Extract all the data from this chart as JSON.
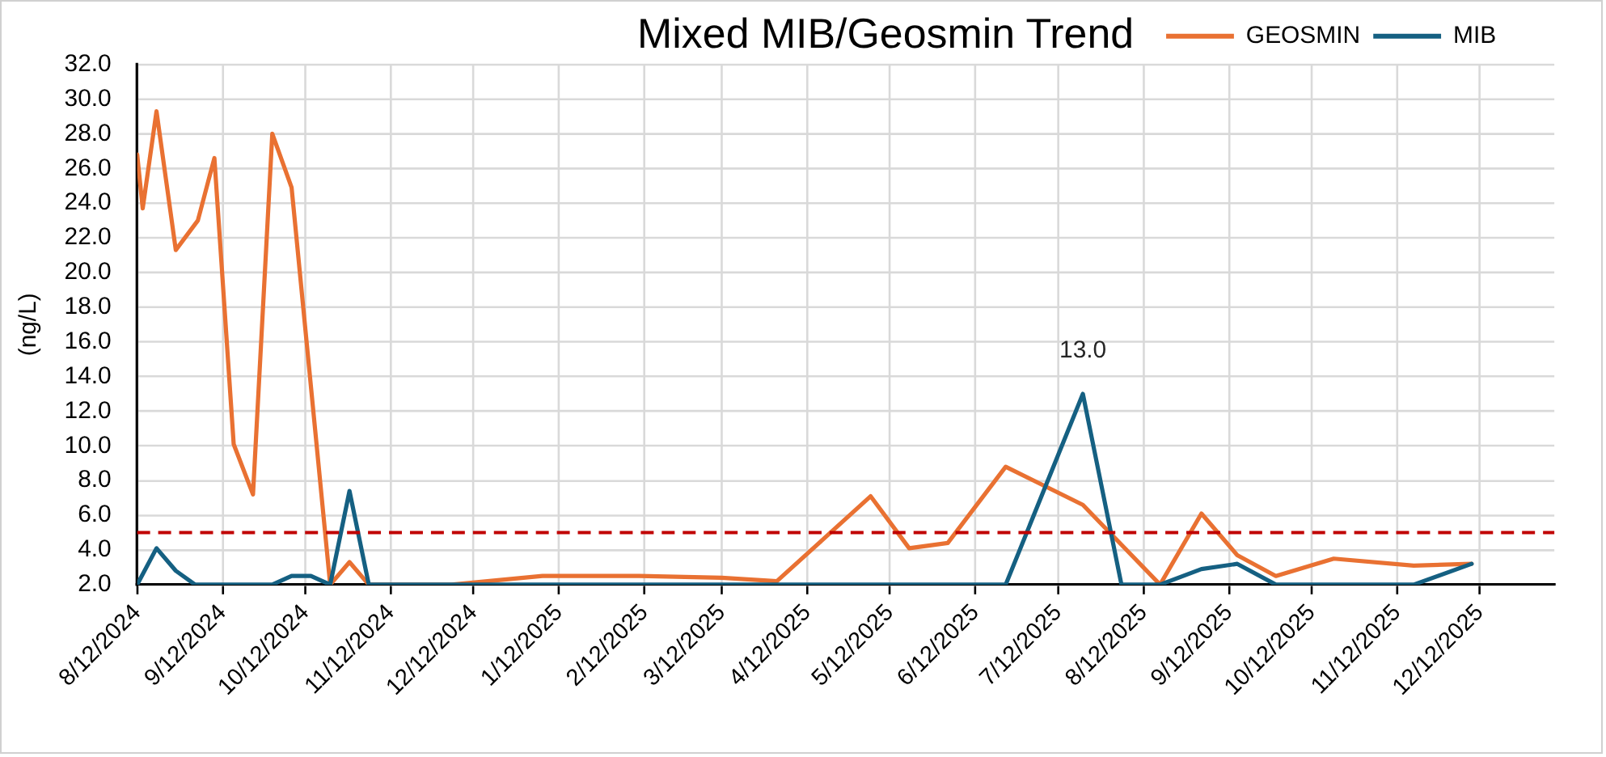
{
  "chart_data": {
    "type": "line",
    "title": "Mixed MIB/Geosmin Trend",
    "ylabel": "(ng/L)",
    "xlim": [
      "2024-08-12",
      "2026-01-08"
    ],
    "xticks": [
      {
        "value": "2024-08-12",
        "label": "8/12/2024"
      },
      {
        "value": "2024-09-12",
        "label": "9/12/2024"
      },
      {
        "value": "2024-10-12",
        "label": "10/12/2024"
      },
      {
        "value": "2024-11-12",
        "label": "11/12/2024"
      },
      {
        "value": "2024-12-12",
        "label": "12/12/2024"
      },
      {
        "value": "2025-01-12",
        "label": "1/12/2025"
      },
      {
        "value": "2025-02-12",
        "label": "2/12/2025"
      },
      {
        "value": "2025-03-12",
        "label": "3/12/2025"
      },
      {
        "value": "2025-04-12",
        "label": "4/12/2025"
      },
      {
        "value": "2025-05-12",
        "label": "5/12/2025"
      },
      {
        "value": "2025-06-12",
        "label": "6/12/2025"
      },
      {
        "value": "2025-07-12",
        "label": "7/12/2025"
      },
      {
        "value": "2025-08-12",
        "label": "8/12/2025"
      },
      {
        "value": "2025-09-12",
        "label": "9/12/2025"
      },
      {
        "value": "2025-10-12",
        "label": "10/12/2025"
      },
      {
        "value": "2025-11-12",
        "label": "11/12/2025"
      },
      {
        "value": "2025-12-12",
        "label": "12/12/2025"
      }
    ],
    "ylim": [
      2,
      32
    ],
    "yticks": [
      {
        "value": 2,
        "label": "2.0"
      },
      {
        "value": 4,
        "label": "4.0"
      },
      {
        "value": 6,
        "label": "6.0"
      },
      {
        "value": 8,
        "label": "8.0"
      },
      {
        "value": 10,
        "label": "10.0"
      },
      {
        "value": 12,
        "label": "12.0"
      },
      {
        "value": 14,
        "label": "14.0"
      },
      {
        "value": 16,
        "label": "16.0"
      },
      {
        "value": 18,
        "label": "18.0"
      },
      {
        "value": 20,
        "label": "20.0"
      },
      {
        "value": 22,
        "label": "22.0"
      },
      {
        "value": 24,
        "label": "24.0"
      },
      {
        "value": 26,
        "label": "26.0"
      },
      {
        "value": 28,
        "label": "28.0"
      },
      {
        "value": 30,
        "label": "30.0"
      },
      {
        "value": 32,
        "label": "32.0"
      }
    ],
    "grid": true,
    "legend": "top right",
    "series": [
      {
        "name": "GEOSMIN",
        "color": "#e97132",
        "x": [
          "2024-08-12",
          "2024-08-14",
          "2024-08-19",
          "2024-08-26",
          "2024-09-03",
          "2024-09-09",
          "2024-09-16",
          "2024-09-23",
          "2024-09-30",
          "2024-10-07",
          "2024-10-21",
          "2024-10-28",
          "2024-11-04",
          "2024-12-04",
          "2025-01-06",
          "2025-02-10",
          "2025-03-12",
          "2025-04-01",
          "2025-05-05",
          "2025-05-19",
          "2025-06-02",
          "2025-06-23",
          "2025-07-21",
          "2025-08-18",
          "2025-09-02",
          "2025-09-15",
          "2025-09-29",
          "2025-10-20",
          "2025-11-18",
          "2025-12-09"
        ],
        "values": [
          26.8,
          23.7,
          29.3,
          21.3,
          23.0,
          26.6,
          10.1,
          7.2,
          28.0,
          24.9,
          2.0,
          3.3,
          2.0,
          2.0,
          2.5,
          2.5,
          2.4,
          2.2,
          7.1,
          4.1,
          4.4,
          8.8,
          6.6,
          2.0,
          6.1,
          3.7,
          2.5,
          3.5,
          3.1,
          3.2
        ]
      },
      {
        "name": "MIB",
        "color": "#156082",
        "x": [
          "2024-08-12",
          "2024-08-19",
          "2024-08-26",
          "2024-09-02",
          "2024-09-30",
          "2024-10-07",
          "2024-10-14",
          "2024-10-21",
          "2024-10-28",
          "2024-11-04",
          "2025-06-23",
          "2025-07-21",
          "2025-08-04",
          "2025-08-18",
          "2025-09-02",
          "2025-09-15",
          "2025-09-29",
          "2025-11-18",
          "2025-12-09"
        ],
        "values": [
          2.0,
          4.1,
          2.8,
          2.0,
          2.0,
          2.5,
          2.5,
          2.0,
          7.4,
          2.0,
          2.0,
          13.0,
          2.0,
          2.0,
          2.9,
          3.2,
          2.0,
          2.0,
          3.2
        ],
        "value_labels": [
          null,
          null,
          null,
          null,
          null,
          null,
          null,
          null,
          null,
          null,
          null,
          "13.0",
          null,
          null,
          null,
          null,
          null,
          null,
          null
        ]
      }
    ],
    "ref_lines": [
      {
        "axis": "y",
        "value": 5,
        "color": "#c00000",
        "line_style": "dashed"
      }
    ]
  }
}
